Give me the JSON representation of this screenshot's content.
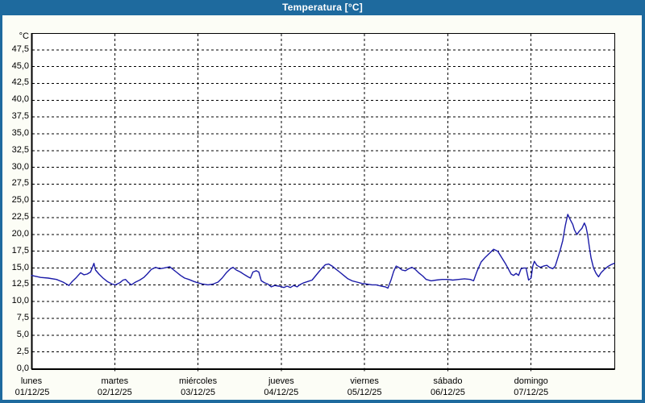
{
  "window": {
    "title": "Temperatura [°C]"
  },
  "colors": {
    "titlebar": "#1e6a9e",
    "window_border": "#1e6a9e",
    "background": "#fcfdf6",
    "plot_background": "#ffffff",
    "grid": "#000000",
    "line": "#1b1ba8",
    "text": "#000000",
    "title_text": "#ffffff"
  },
  "chart_data": {
    "type": "line",
    "title": "Temperatura [°C]",
    "y_unit_label": "°C",
    "grid": "dashed",
    "legend": "none",
    "y_axis": {
      "min": 0,
      "max": 50,
      "tick_step": 2.5,
      "tick_labels": [
        "0,0",
        "2,5",
        "5,0",
        "7,5",
        "10,0",
        "12,5",
        "15,0",
        "17,5",
        "20,0",
        "22,5",
        "25,0",
        "27,5",
        "30,0",
        "32,5",
        "35,0",
        "37,5",
        "40,0",
        "42,5",
        "45,0",
        "47,5"
      ]
    },
    "x_axis": {
      "unit": "day",
      "days": [
        {
          "name": "lunes",
          "date": "01/12/25"
        },
        {
          "name": "martes",
          "date": "02/12/25"
        },
        {
          "name": "miércoles",
          "date": "03/12/25"
        },
        {
          "name": "jueves",
          "date": "04/12/25"
        },
        {
          "name": "viernes",
          "date": "05/12/25"
        },
        {
          "name": "sábado",
          "date": "06/12/25"
        },
        {
          "name": "domingo",
          "date": "07/12/25"
        }
      ]
    },
    "series": [
      {
        "name": "Temperatura",
        "color": "#1b1ba8",
        "points": [
          [
            0.0,
            13.9
          ],
          [
            0.11,
            13.6
          ],
          [
            0.2,
            13.5
          ],
          [
            0.3,
            13.3
          ],
          [
            0.38,
            12.9
          ],
          [
            0.45,
            12.4
          ],
          [
            0.49,
            13.0
          ],
          [
            0.54,
            13.6
          ],
          [
            0.59,
            14.3
          ],
          [
            0.63,
            14.0
          ],
          [
            0.67,
            14.1
          ],
          [
            0.71,
            14.4
          ],
          [
            0.75,
            15.7
          ],
          [
            0.77,
            14.7
          ],
          [
            0.81,
            14.1
          ],
          [
            0.86,
            13.5
          ],
          [
            0.91,
            13.0
          ],
          [
            0.97,
            12.6
          ],
          [
            1.01,
            12.5
          ],
          [
            1.06,
            12.8
          ],
          [
            1.1,
            13.2
          ],
          [
            1.13,
            13.3
          ],
          [
            1.16,
            12.9
          ],
          [
            1.2,
            12.5
          ],
          [
            1.25,
            12.9
          ],
          [
            1.3,
            13.2
          ],
          [
            1.35,
            13.6
          ],
          [
            1.39,
            14.1
          ],
          [
            1.44,
            14.8
          ],
          [
            1.49,
            15.1
          ],
          [
            1.54,
            14.9
          ],
          [
            1.59,
            15.0
          ],
          [
            1.63,
            15.1
          ],
          [
            1.66,
            15.2
          ],
          [
            1.69,
            14.9
          ],
          [
            1.74,
            14.4
          ],
          [
            1.79,
            13.9
          ],
          [
            1.84,
            13.5
          ],
          [
            1.89,
            13.3
          ],
          [
            1.95,
            13.0
          ],
          [
            2.0,
            12.8
          ],
          [
            2.06,
            12.6
          ],
          [
            2.12,
            12.5
          ],
          [
            2.18,
            12.6
          ],
          [
            2.24,
            12.9
          ],
          [
            2.29,
            13.5
          ],
          [
            2.34,
            14.3
          ],
          [
            2.39,
            14.9
          ],
          [
            2.42,
            15.1
          ],
          [
            2.46,
            14.7
          ],
          [
            2.51,
            14.4
          ],
          [
            2.56,
            14.0
          ],
          [
            2.6,
            13.7
          ],
          [
            2.63,
            13.5
          ],
          [
            2.66,
            14.4
          ],
          [
            2.7,
            14.6
          ],
          [
            2.73,
            14.4
          ],
          [
            2.76,
            13.1
          ],
          [
            2.8,
            12.8
          ],
          [
            2.84,
            12.6
          ],
          [
            2.88,
            12.2
          ],
          [
            2.92,
            12.4
          ],
          [
            2.97,
            12.3
          ],
          [
            3.03,
            12.1
          ],
          [
            3.07,
            12.3
          ],
          [
            3.11,
            12.1
          ],
          [
            3.15,
            12.4
          ],
          [
            3.19,
            12.2
          ],
          [
            3.22,
            12.5
          ],
          [
            3.27,
            12.8
          ],
          [
            3.32,
            13.0
          ],
          [
            3.37,
            13.2
          ],
          [
            3.41,
            13.8
          ],
          [
            3.45,
            14.4
          ],
          [
            3.49,
            15.0
          ],
          [
            3.53,
            15.5
          ],
          [
            3.57,
            15.6
          ],
          [
            3.61,
            15.3
          ],
          [
            3.65,
            14.9
          ],
          [
            3.7,
            14.4
          ],
          [
            3.75,
            13.9
          ],
          [
            3.8,
            13.4
          ],
          [
            3.85,
            13.1
          ],
          [
            3.91,
            12.9
          ],
          [
            3.97,
            12.7
          ],
          [
            4.03,
            12.6
          ],
          [
            4.09,
            12.5
          ],
          [
            4.14,
            12.5
          ],
          [
            4.2,
            12.3
          ],
          [
            4.25,
            12.2
          ],
          [
            4.28,
            12.0
          ],
          [
            4.32,
            13.3
          ],
          [
            4.35,
            14.5
          ],
          [
            4.38,
            15.3
          ],
          [
            4.41,
            15.1
          ],
          [
            4.45,
            14.7
          ],
          [
            4.49,
            14.6
          ],
          [
            4.53,
            14.9
          ],
          [
            4.57,
            15.1
          ],
          [
            4.61,
            14.8
          ],
          [
            4.65,
            14.3
          ],
          [
            4.7,
            13.8
          ],
          [
            4.74,
            13.3
          ],
          [
            4.8,
            13.1
          ],
          [
            4.86,
            13.2
          ],
          [
            4.93,
            13.3
          ],
          [
            5.0,
            13.3
          ],
          [
            5.06,
            13.2
          ],
          [
            5.13,
            13.3
          ],
          [
            5.2,
            13.4
          ],
          [
            5.27,
            13.3
          ],
          [
            5.31,
            13.1
          ],
          [
            5.35,
            14.5
          ],
          [
            5.4,
            15.9
          ],
          [
            5.45,
            16.6
          ],
          [
            5.5,
            17.2
          ],
          [
            5.55,
            17.8
          ],
          [
            5.6,
            17.5
          ],
          [
            5.64,
            16.7
          ],
          [
            5.69,
            15.7
          ],
          [
            5.73,
            14.8
          ],
          [
            5.76,
            14.1
          ],
          [
            5.79,
            13.9
          ],
          [
            5.82,
            14.2
          ],
          [
            5.85,
            13.9
          ],
          [
            5.88,
            14.9
          ],
          [
            5.91,
            15.0
          ],
          [
            5.94,
            15.0
          ],
          [
            5.97,
            13.2
          ],
          [
            6.0,
            13.5
          ],
          [
            6.02,
            15.3
          ],
          [
            6.04,
            16.0
          ],
          [
            6.07,
            15.4
          ],
          [
            6.11,
            15.1
          ],
          [
            6.15,
            15.3
          ],
          [
            6.19,
            15.4
          ],
          [
            6.22,
            15.1
          ],
          [
            6.26,
            14.9
          ],
          [
            6.29,
            15.3
          ],
          [
            6.32,
            16.5
          ],
          [
            6.35,
            17.7
          ],
          [
            6.38,
            19.1
          ],
          [
            6.41,
            21.3
          ],
          [
            6.44,
            23.0
          ],
          [
            6.47,
            22.2
          ],
          [
            6.5,
            21.5
          ],
          [
            6.52,
            20.7
          ],
          [
            6.55,
            20.0
          ],
          [
            6.58,
            20.5
          ],
          [
            6.61,
            20.9
          ],
          [
            6.64,
            21.7
          ],
          [
            6.66,
            21.1
          ],
          [
            6.68,
            19.9
          ],
          [
            6.7,
            18.1
          ],
          [
            6.72,
            16.5
          ],
          [
            6.75,
            15.0
          ],
          [
            6.78,
            14.2
          ],
          [
            6.81,
            13.7
          ],
          [
            6.84,
            14.3
          ],
          [
            6.88,
            14.8
          ],
          [
            6.92,
            15.2
          ],
          [
            6.96,
            15.5
          ],
          [
            7.0,
            15.7
          ]
        ]
      }
    ]
  }
}
